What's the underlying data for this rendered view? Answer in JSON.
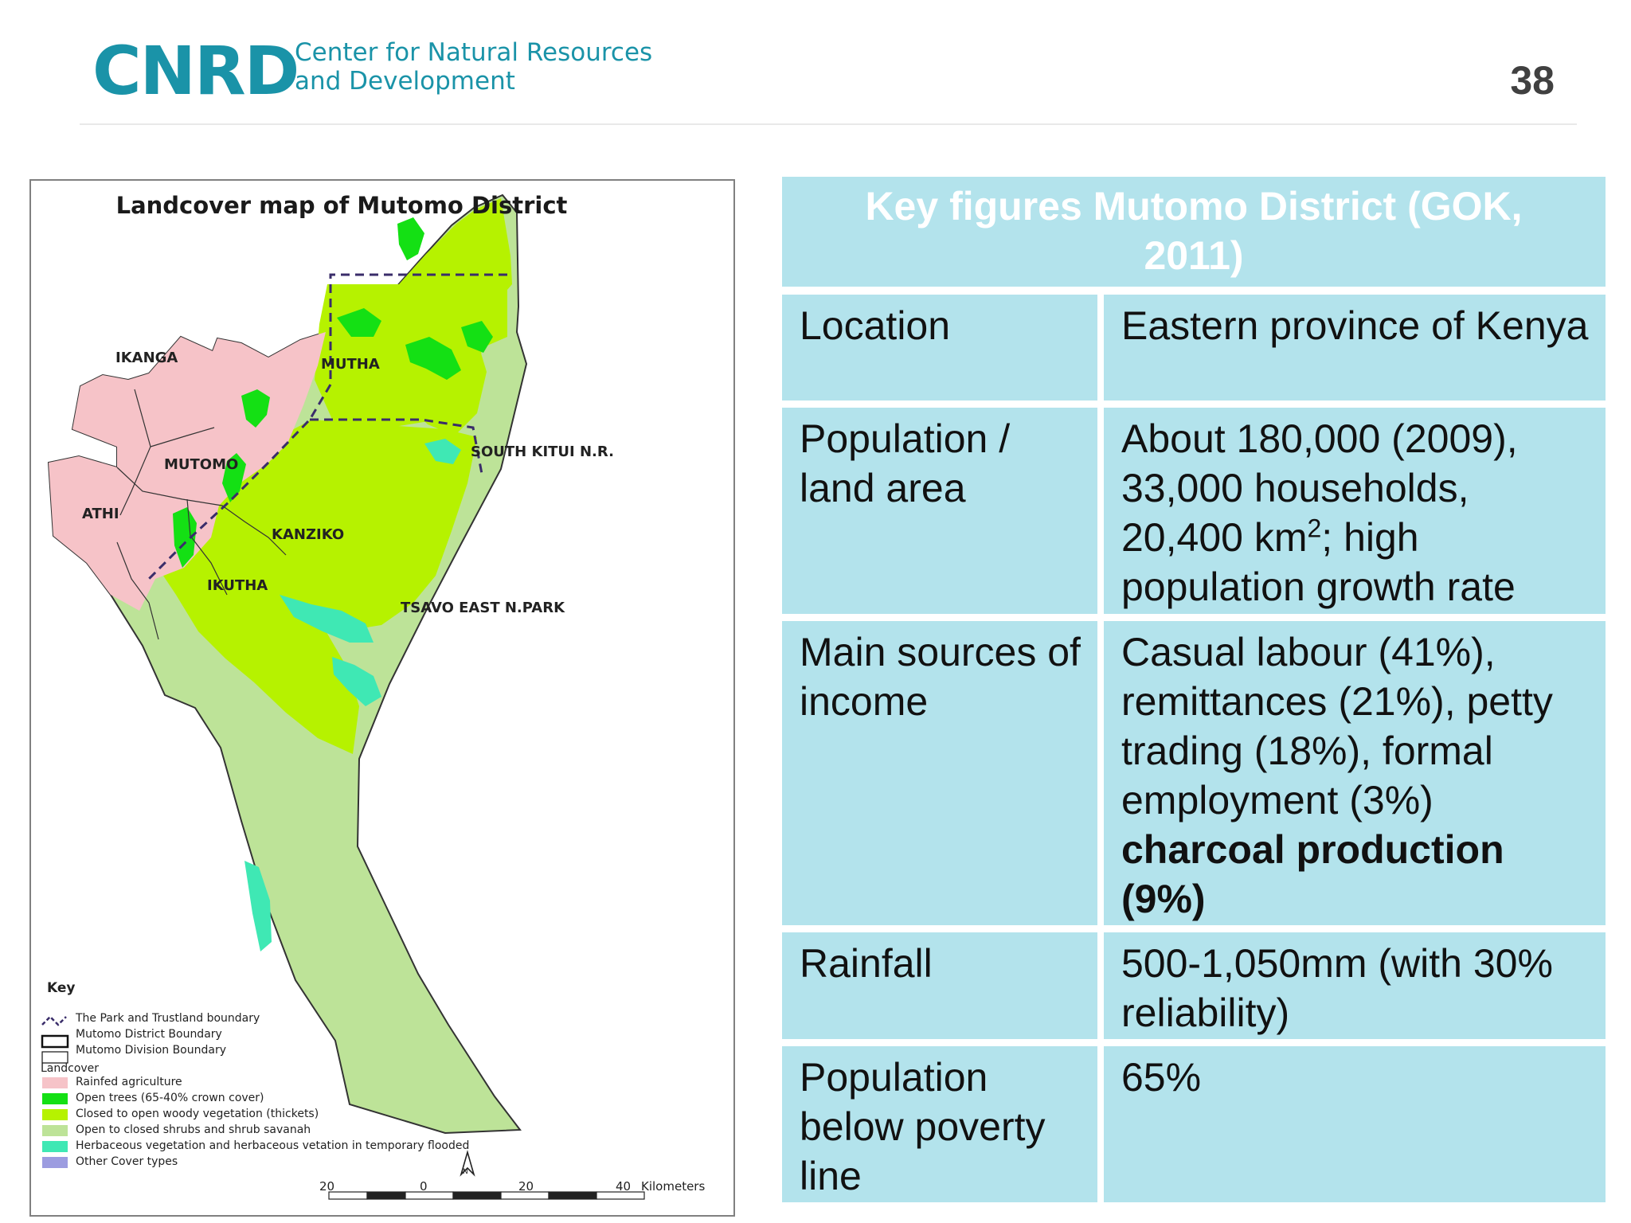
{
  "header": {
    "logo": "CNRD",
    "org_line1": "Center for Natural Resources",
    "org_line2": "and Development",
    "page_number": "38"
  },
  "map": {
    "title": "Landcover map of Mutomo District",
    "labels": {
      "ikanga": "IKANGA",
      "mutha": "MUTHA",
      "mutomo": "MUTOMO",
      "athi": "ATHI",
      "kanziko": "KANZIKO",
      "ikutha": "IKUTHA",
      "south_kitui": "SOUTH KITUI N.R.",
      "tsavo_east": "TSAVO EAST N.PARK"
    },
    "legend": {
      "title": "Key",
      "park_boundary": "The Park and Trustland boundary",
      "district_boundary": "Mutomo District Boundary",
      "division_boundary": "Mutomo Division Boundary",
      "landcover_heading": "Landcover",
      "items": [
        {
          "label": "Rainfed agriculture",
          "color": "#f6c3c8"
        },
        {
          "label": "Open trees (65-40% crown cover)",
          "color": "#14e014"
        },
        {
          "label": "Closed to open woody vegetation (thickets)",
          "color": "#b6f200"
        },
        {
          "label": "Open to closed shrubs and shrub savanah",
          "color": "#bde398"
        },
        {
          "label": "Herbaceous vegetation and herbaceous vetation in temporary flooded",
          "color": "#3fe8b4"
        },
        {
          "label": "Other Cover types",
          "color": "#9c9ce0"
        }
      ]
    },
    "scale": {
      "ticks": [
        "20",
        "0",
        "20",
        "40"
      ],
      "unit": "Kilometers"
    },
    "north_label": "N"
  },
  "table": {
    "title": "Key figures Mutomo District  (GOK, 2011)",
    "rows": [
      {
        "label": "Location",
        "value": "Eastern province of Kenya"
      },
      {
        "label": "Population / land area",
        "value_part1": "About 180,000 (2009), 33,000 households, 20,400 km",
        "value_sup": "2",
        "value_part2": "; high population growth rate"
      },
      {
        "label": "Main sources of income",
        "value": "Casual labour (41%), remittances (21%), petty trading (18%), formal employment (3%)",
        "value_bold": "charcoal production (9%)"
      },
      {
        "label": "Rainfall",
        "value": "500-1,050mm (with 30% reliability)"
      },
      {
        "label": "Population below poverty line",
        "value": "65%"
      }
    ]
  }
}
